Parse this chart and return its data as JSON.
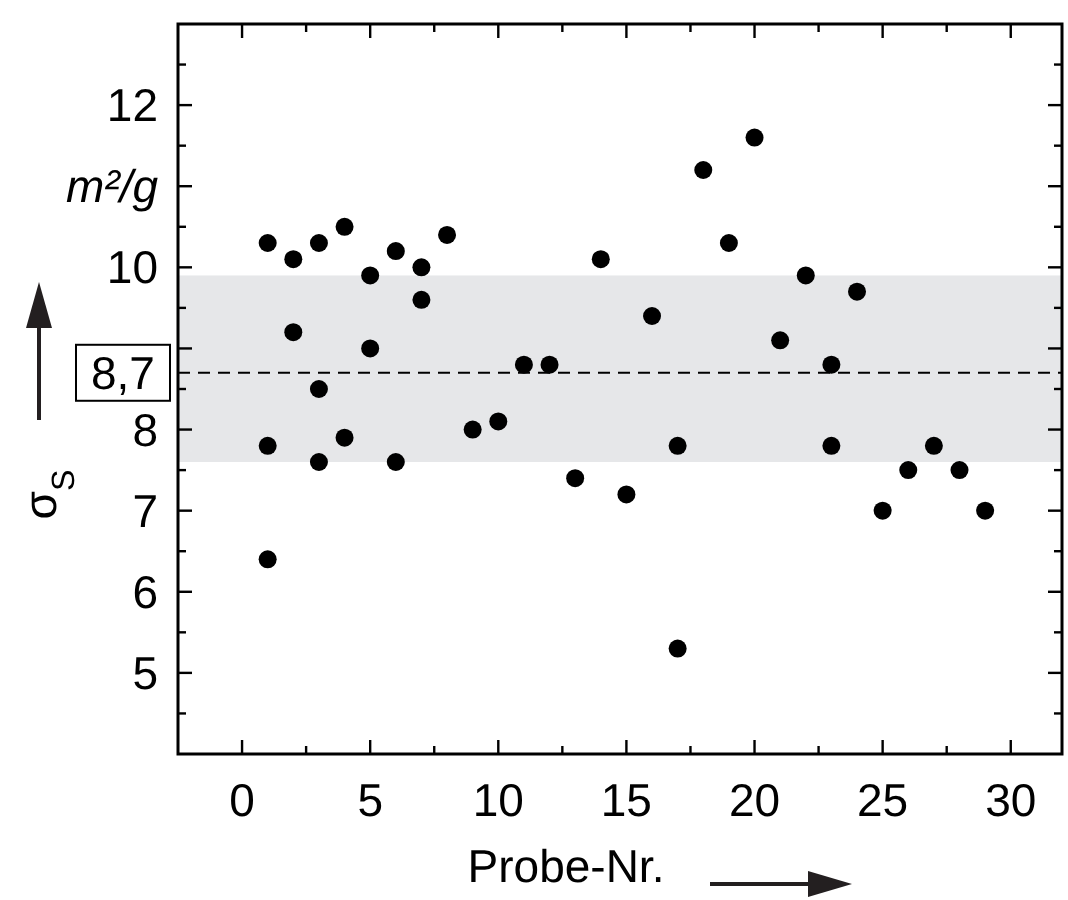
{
  "chart_data": {
    "type": "scatter",
    "xlabel": "Probe-Nr.",
    "ylabel": "σ$_{S}$",
    "annotations": [
      "m²/g"
    ],
    "x": [
      1,
      1,
      1,
      2,
      2,
      3,
      3,
      3,
      4,
      4,
      5,
      5,
      6,
      6,
      7,
      7,
      8,
      9,
      10,
      11,
      12,
      13,
      14,
      15,
      16,
      17,
      17,
      18,
      19,
      20,
      21,
      22,
      23,
      23,
      24,
      25,
      26,
      27,
      28,
      29
    ],
    "series": [
      {
        "color": "#000000",
        "values": [
          10.3,
          7.8,
          6.4,
          10.1,
          9.2,
          10.3,
          8.5,
          7.6,
          10.5,
          7.9,
          9.9,
          9.0,
          10.2,
          7.6,
          10.0,
          9.6,
          10.4,
          8.0,
          8.1,
          8.8,
          8.8,
          7.4,
          10.1,
          7.2,
          9.4,
          7.8,
          5.3,
          11.2,
          10.3,
          11.6,
          9.1,
          9.9,
          8.8,
          7.8,
          9.7,
          7.0,
          7.5,
          7.8,
          7.5,
          7.0
        ]
      }
    ],
    "xlim": [
      -2.5,
      32
    ],
    "ylim": [
      4,
      13
    ],
    "xticks": [
      0,
      {
        "value": 2.5,
        "label": null
      },
      5,
      {
        "value": 7.5,
        "label": null
      },
      10,
      {
        "value": 12.5,
        "label": null
      },
      15,
      {
        "value": 17.5,
        "label": null
      },
      20,
      {
        "value": 22.5,
        "label": null
      },
      25,
      {
        "value": 27.5,
        "label": null
      },
      30
    ],
    "yticks": [
      {
        "value": 4.5,
        "label": null
      },
      5,
      {
        "value": 5.5,
        "label": null
      },
      6,
      {
        "value": 6.5,
        "label": null
      },
      7,
      {
        "value": 7.5,
        "label": null
      },
      8,
      {
        "value": 8.5,
        "label": null
      },
      {
        "value": 9,
        "label": null
      },
      {
        "value": 9.5,
        "label": null
      },
      10,
      {
        "value": 10.5,
        "label": null
      },
      {
        "value": 11,
        "label": null
      },
      {
        "value": 11.5,
        "label": null
      },
      12,
      {
        "value": 12.5,
        "label": null
      }
    ],
    "ref_lines": [
      {
        "axis": "y",
        "value": 8.7,
        "label": "8,7",
        "color": "#000000",
        "line_style": "dashed"
      }
    ],
    "bands": [
      {
        "axis": "y",
        "from": 7.6,
        "to": 9.9,
        "color": "#e6e7e9"
      }
    ],
    "marker": "circle",
    "grid": false
  }
}
